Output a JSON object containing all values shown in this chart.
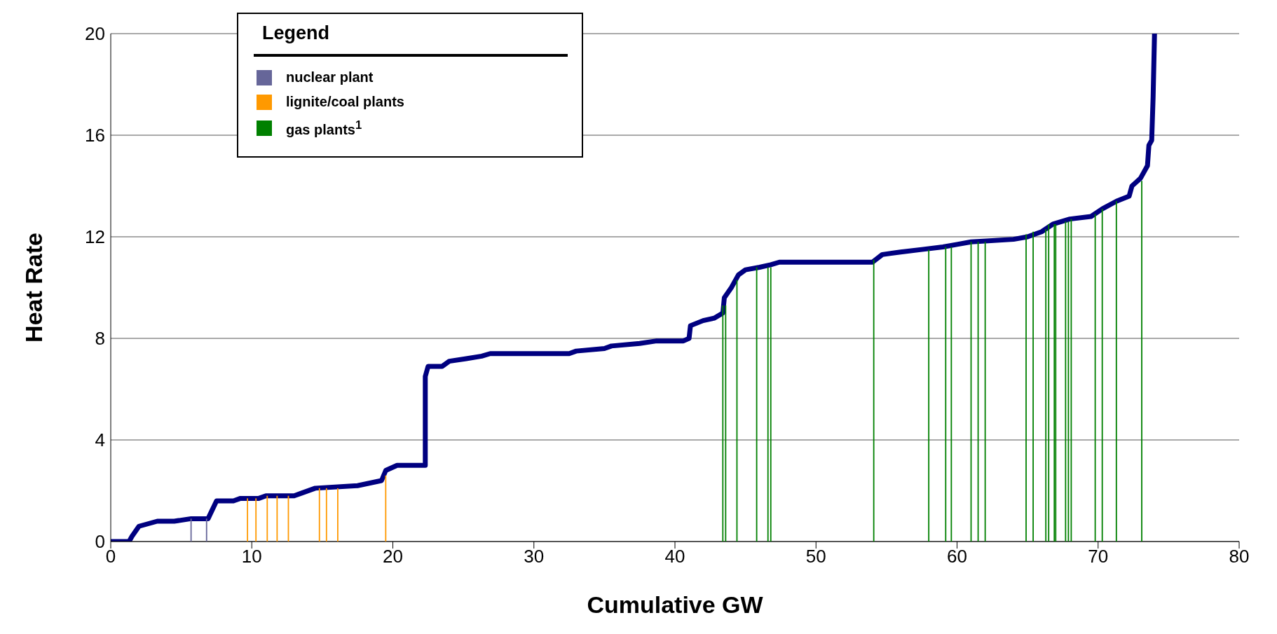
{
  "chart_data": {
    "type": "line",
    "xlabel": "Cumulative GW",
    "ylabel": "Heat Rate",
    "legend_title": "Legend",
    "xlim": [
      0,
      80
    ],
    "xticks": [
      0,
      10,
      20,
      30,
      40,
      50,
      60,
      70,
      80
    ],
    "ylim": [
      0,
      20
    ],
    "yticks": [
      0,
      4,
      8,
      12,
      16,
      20
    ],
    "grid": "y",
    "legend": "top left",
    "line_style": "solid",
    "marker": "none",
    "series": [
      {
        "color": "#000080",
        "x": [
          0,
          1.3,
          1.5,
          2,
          3.3,
          4.5,
          5.7,
          6.9,
          7.5,
          8.7,
          9.2,
          10.5,
          11,
          13,
          13.5,
          14.5,
          17.5,
          19.2,
          19.5,
          20.3,
          22.3,
          22.3,
          22.5,
          23.5,
          24,
          25.2,
          26.3,
          26.9,
          32.5,
          33,
          35,
          35.5,
          37.5,
          38.7,
          40.6,
          41,
          41.1,
          42,
          42.8,
          43.4,
          43.5,
          44,
          44.5,
          45,
          46,
          46.8,
          47.4,
          54,
          54.7,
          56,
          57.5,
          59,
          60,
          61,
          64,
          65,
          66,
          66.8,
          68,
          69.5,
          70.3,
          71.3,
          72.2,
          72.4,
          73,
          73.5,
          73.6,
          73.8,
          73.9,
          74
        ],
        "values": [
          0,
          0,
          0.2,
          0.6,
          0.8,
          0.8,
          0.9,
          0.9,
          1.6,
          1.6,
          1.7,
          1.7,
          1.8,
          1.8,
          1.9,
          2.1,
          2.2,
          2.4,
          2.8,
          3,
          3,
          6.5,
          6.9,
          6.9,
          7.1,
          7.2,
          7.3,
          7.4,
          7.4,
          7.5,
          7.6,
          7.7,
          7.8,
          7.9,
          7.9,
          8,
          8.5,
          8.7,
          8.8,
          9,
          9.6,
          10,
          10.5,
          10.7,
          10.8,
          10.9,
          11,
          11,
          11.3,
          11.4,
          11.5,
          11.6,
          11.7,
          11.8,
          11.9,
          12,
          12.2,
          12.5,
          12.7,
          12.8,
          13.1,
          13.4,
          13.6,
          14,
          14.3,
          14.8,
          15.6,
          15.8,
          17.5,
          20
        ]
      },
      {
        "type": "bar",
        "name": "nuclear plant",
        "color": "#666699",
        "x": [
          5.7,
          6.8
        ],
        "values": [
          0.9,
          0.9
        ]
      },
      {
        "type": "bar",
        "name": "lignite/coal plants",
        "color": "#ff9900",
        "x": [
          9.7,
          10.3,
          11.1,
          11.8,
          12.6,
          14.8,
          15.3,
          16.1,
          19.5
        ],
        "values": [
          1.7,
          1.7,
          1.8,
          1.8,
          1.8,
          2.1,
          2.1,
          2.1,
          2.6
        ]
      },
      {
        "type": "bar",
        "name": "gas plants$^{1}$",
        "color": "#008000",
        "x": [
          43.4,
          43.6,
          44.4,
          45.8,
          46.6,
          46.8,
          54.1,
          58,
          59.2,
          59.6,
          61,
          61.5,
          62,
          64.9,
          65.4,
          66.3,
          66.5,
          66.9,
          67,
          67.7,
          67.9,
          68.1,
          69.8,
          70.3,
          71.3,
          73.1
        ],
        "values": [
          9.3,
          9.3,
          10.3,
          10.8,
          10.8,
          10.8,
          11.1,
          11.5,
          11.6,
          11.6,
          11.8,
          11.8,
          11.8,
          12.1,
          12.2,
          12.3,
          12.5,
          12.5,
          12.5,
          12.6,
          12.6,
          12.7,
          12.9,
          13.1,
          13.4,
          14.2
        ]
      }
    ]
  }
}
